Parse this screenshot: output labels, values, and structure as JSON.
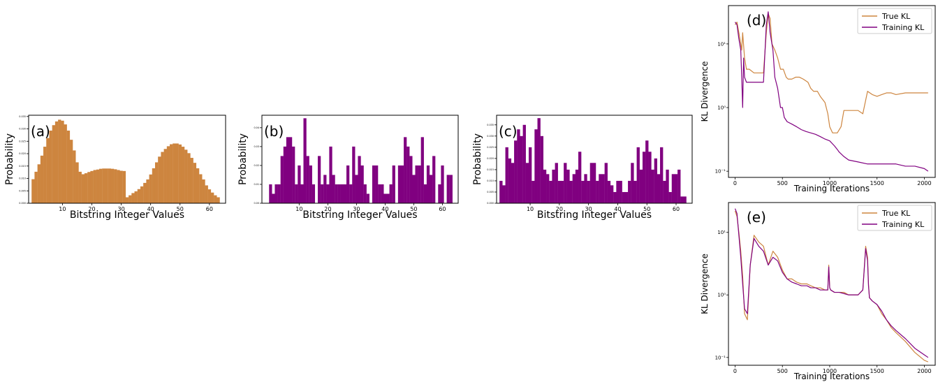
{
  "colors": {
    "orange": "#cd853f",
    "purple": "#800080",
    "axis": "#000000"
  },
  "chart_data": [
    {
      "panel": "(a)",
      "type": "bar",
      "xlabel": "Bitstring Integer Values",
      "ylabel": "Probability",
      "xlim": [
        -1.5,
        65.5
      ],
      "ylim": [
        0.0,
        0.0355
      ],
      "xticks": [
        10,
        20,
        30,
        40,
        50,
        60
      ],
      "yticks": [
        0.0,
        0.005,
        0.01,
        0.015,
        0.02,
        0.025,
        0.03,
        0.035
      ],
      "ytick_labels": [
        "0.000",
        "0.005",
        "0.010",
        "0.015",
        "0.020",
        "0.025",
        "0.030",
        "0.035"
      ],
      "color": "orange",
      "x": [
        0,
        1,
        2,
        3,
        4,
        5,
        6,
        7,
        8,
        9,
        10,
        11,
        12,
        13,
        14,
        15,
        16,
        17,
        18,
        19,
        20,
        21,
        22,
        23,
        24,
        25,
        26,
        27,
        28,
        29,
        30,
        31,
        32,
        33,
        34,
        35,
        36,
        37,
        38,
        39,
        40,
        41,
        42,
        43,
        44,
        45,
        46,
        47,
        48,
        49,
        50,
        51,
        52,
        53,
        54,
        55,
        56,
        57,
        58,
        59,
        60,
        61,
        62,
        63
      ],
      "values": [
        0.0097,
        0.0127,
        0.0157,
        0.0192,
        0.0228,
        0.0263,
        0.0293,
        0.0315,
        0.033,
        0.0337,
        0.0333,
        0.0318,
        0.0293,
        0.0256,
        0.0213,
        0.0165,
        0.0127,
        0.0117,
        0.0121,
        0.0126,
        0.013,
        0.0134,
        0.0136,
        0.0139,
        0.014,
        0.014,
        0.014,
        0.0139,
        0.0137,
        0.0134,
        0.0131,
        0.013,
        0.0024,
        0.0032,
        0.0041,
        0.0048,
        0.0057,
        0.0068,
        0.0082,
        0.0096,
        0.0116,
        0.0141,
        0.0165,
        0.0188,
        0.0207,
        0.0219,
        0.023,
        0.0238,
        0.0241,
        0.0241,
        0.0237,
        0.0228,
        0.0216,
        0.0202,
        0.0183,
        0.0163,
        0.0141,
        0.0117,
        0.0096,
        0.0072,
        0.0056,
        0.0043,
        0.0032,
        0.0024
      ]
    },
    {
      "panel": "(b)",
      "type": "bar",
      "xlabel": "Bitstring Integer Values",
      "ylabel": "Probability",
      "xlim": [
        -3.0,
        65.5
      ],
      "ylim": [
        0.0,
        0.0466
      ],
      "xticks": [
        10,
        20,
        30,
        40,
        50,
        60
      ],
      "yticks": [
        0.0,
        0.01,
        0.02,
        0.03,
        0.04
      ],
      "ytick_labels": [
        "0.00",
        "0.01",
        "0.02",
        "0.03",
        "0.04"
      ],
      "color": "purple",
      "x": [
        0,
        1,
        2,
        3,
        4,
        5,
        6,
        7,
        8,
        9,
        10,
        11,
        12,
        13,
        14,
        15,
        16,
        17,
        18,
        19,
        20,
        21,
        22,
        23,
        24,
        25,
        26,
        27,
        28,
        29,
        30,
        31,
        32,
        33,
        34,
        35,
        36,
        37,
        38,
        39,
        40,
        41,
        42,
        43,
        44,
        45,
        46,
        47,
        48,
        49,
        50,
        51,
        52,
        53,
        54,
        55,
        56,
        57,
        58,
        59,
        60,
        61,
        62,
        63
      ],
      "values": [
        0.01,
        0.005,
        0.01,
        0.01,
        0.025,
        0.03,
        0.035,
        0.035,
        0.03,
        0.01,
        0.02,
        0.01,
        0.045,
        0.025,
        0.02,
        0.01,
        0,
        0.025,
        0.01,
        0.015,
        0.01,
        0.03,
        0.015,
        0.01,
        0.01,
        0.01,
        0.01,
        0.02,
        0.01,
        0.03,
        0.015,
        0.025,
        0.02,
        0.01,
        0.005,
        0,
        0.02,
        0.02,
        0.01,
        0.01,
        0.005,
        0.005,
        0.01,
        0.02,
        0,
        0.02,
        0.02,
        0.035,
        0.03,
        0.025,
        0.015,
        0.02,
        0.02,
        0.035,
        0.01,
        0.02,
        0.015,
        0.025,
        0,
        0.01,
        0.02,
        0,
        0.015,
        0.015
      ]
    },
    {
      "panel": "(c)",
      "type": "bar",
      "xlabel": "Bitstring Integer Values",
      "ylabel": "Probability",
      "xlim": [
        -1.5,
        65.5
      ],
      "ylim": [
        0.0,
        0.0393
      ],
      "xticks": [
        10,
        20,
        30,
        40,
        50,
        60
      ],
      "yticks": [
        0.0,
        0.005,
        0.01,
        0.015,
        0.02,
        0.025,
        0.03,
        0.035
      ],
      "ytick_labels": [
        "0.000",
        "0.005",
        "0.010",
        "0.015",
        "0.020",
        "0.025",
        "0.030",
        "0.035"
      ],
      "color": "purple",
      "x": [
        0,
        1,
        2,
        3,
        4,
        5,
        6,
        7,
        8,
        9,
        10,
        11,
        12,
        13,
        14,
        15,
        16,
        17,
        18,
        19,
        20,
        21,
        22,
        23,
        24,
        25,
        26,
        27,
        28,
        29,
        30,
        31,
        32,
        33,
        34,
        35,
        36,
        37,
        38,
        39,
        40,
        41,
        42,
        43,
        44,
        45,
        46,
        47,
        48,
        49,
        50,
        51,
        52,
        53,
        54,
        55,
        56,
        57,
        58,
        59,
        60,
        61,
        62,
        63
      ],
      "values": [
        0.01,
        0.008,
        0.025,
        0.02,
        0.018,
        0.028,
        0.033,
        0.03,
        0.035,
        0.018,
        0.025,
        0.01,
        0.033,
        0.038,
        0.03,
        0.015,
        0.013,
        0.01,
        0.015,
        0.018,
        0.01,
        0.01,
        0.018,
        0.015,
        0.01,
        0.013,
        0.015,
        0.023,
        0.01,
        0.013,
        0.01,
        0.018,
        0.018,
        0.01,
        0.013,
        0.013,
        0.018,
        0.01,
        0.008,
        0.005,
        0.01,
        0.01,
        0.005,
        0.005,
        0.01,
        0.018,
        0.01,
        0.025,
        0.015,
        0.023,
        0.028,
        0.023,
        0.015,
        0.02,
        0.013,
        0.025,
        0.01,
        0.015,
        0.005,
        0.013,
        0.013,
        0.015,
        0.003,
        0.003
      ]
    },
    {
      "panel": "(d)",
      "type": "line",
      "xlabel": "Training Iterations",
      "ylabel": "KL Divergence",
      "yscale": "log",
      "xlim": [
        -70,
        2115
      ],
      "ylim": [
        0.08,
        40
      ],
      "xticks": [
        0,
        500,
        1000,
        1500,
        2000
      ],
      "yticks": [
        0.1,
        1,
        10
      ],
      "ytick_labels": [
        "10⁻¹",
        "10⁰",
        "10¹"
      ],
      "legend": "top-right",
      "series": [
        {
          "name": "True KL",
          "color": "orange",
          "x": [
            0,
            20,
            40,
            60,
            70,
            80,
            100,
            120,
            150,
            200,
            250,
            300,
            330,
            350,
            370,
            390,
            420,
            450,
            480,
            510,
            540,
            560,
            600,
            640,
            680,
            720,
            770,
            800,
            830,
            870,
            900,
            950,
            980,
            1000,
            1030,
            1060,
            1080,
            1120,
            1150,
            1200,
            1250,
            1300,
            1350,
            1400,
            1450,
            1500,
            1550,
            1600,
            1650,
            1700,
            1800,
            1900,
            2000,
            2040
          ],
          "values": [
            20,
            22,
            15,
            10,
            8,
            15,
            6,
            4,
            4,
            3.5,
            3.5,
            3.5,
            15,
            30,
            25,
            10,
            8,
            6,
            4,
            4,
            3,
            2.8,
            2.8,
            3,
            3,
            2.8,
            2.5,
            2,
            1.8,
            1.8,
            1.5,
            1.2,
            0.8,
            0.5,
            0.4,
            0.4,
            0.4,
            0.5,
            0.9,
            0.9,
            0.9,
            0.9,
            0.8,
            1.8,
            1.6,
            1.5,
            1.6,
            1.7,
            1.7,
            1.6,
            1.7,
            1.7,
            1.7,
            1.7
          ]
        },
        {
          "name": "Training KL",
          "color": "purple",
          "x": [
            0,
            20,
            40,
            60,
            70,
            80,
            90,
            100,
            120,
            150,
            200,
            250,
            300,
            330,
            350,
            370,
            400,
            420,
            450,
            480,
            500,
            520,
            550,
            600,
            650,
            700,
            750,
            800,
            850,
            900,
            950,
            1000,
            1050,
            1080,
            1100,
            1150,
            1200,
            1300,
            1400,
            1500,
            1600,
            1700,
            1800,
            1900,
            2000,
            2040
          ],
          "values": [
            22,
            20,
            12,
            8,
            3,
            1,
            6,
            3,
            2.5,
            2.5,
            2.5,
            2.5,
            2.5,
            20,
            32,
            15,
            8,
            3,
            2,
            1,
            1,
            0.7,
            0.6,
            0.55,
            0.5,
            0.45,
            0.42,
            0.4,
            0.38,
            0.35,
            0.32,
            0.3,
            0.25,
            0.22,
            0.2,
            0.17,
            0.15,
            0.14,
            0.13,
            0.13,
            0.13,
            0.13,
            0.12,
            0.12,
            0.11,
            0.1
          ]
        }
      ]
    },
    {
      "panel": "(e)",
      "type": "line",
      "xlabel": "Training Iterations",
      "ylabel": "KL Divergence",
      "yscale": "log",
      "xlim": [
        -70,
        2115
      ],
      "ylim": [
        0.075,
        30
      ],
      "xticks": [
        0,
        500,
        1000,
        1500,
        2000
      ],
      "yticks": [
        0.1,
        1,
        10
      ],
      "ytick_labels": [
        "10⁻¹",
        "10⁰",
        "10¹"
      ],
      "legend": "top-right",
      "series": [
        {
          "name": "True KL",
          "color": "orange",
          "x": [
            0,
            20,
            40,
            60,
            80,
            100,
            130,
            160,
            200,
            250,
            300,
            350,
            400,
            450,
            500,
            550,
            600,
            650,
            700,
            760,
            800,
            850,
            900,
            950,
            980,
            990,
            1000,
            1010,
            1050,
            1100,
            1150,
            1200,
            1250,
            1300,
            1350,
            1380,
            1400,
            1410,
            1420,
            1450,
            1500,
            1550,
            1600,
            1650,
            1700,
            1800,
            1900,
            2000,
            2040
          ],
          "values": [
            22,
            18,
            10,
            5,
            2,
            0.5,
            0.4,
            3,
            9,
            7,
            6,
            3,
            5,
            4,
            2.5,
            1.8,
            1.8,
            1.6,
            1.5,
            1.5,
            1.4,
            1.3,
            1.3,
            1.2,
            1.2,
            3,
            1.3,
            1.2,
            1.1,
            1.1,
            1.1,
            1,
            1,
            1,
            1.2,
            6,
            4,
            1.5,
            0.9,
            0.8,
            0.7,
            0.5,
            0.4,
            0.3,
            0.25,
            0.18,
            0.12,
            0.09,
            0.085
          ]
        },
        {
          "name": "Training KL",
          "color": "purple",
          "x": [
            0,
            20,
            40,
            60,
            80,
            100,
            130,
            160,
            200,
            250,
            300,
            350,
            400,
            450,
            500,
            550,
            600,
            650,
            700,
            760,
            800,
            850,
            900,
            950,
            980,
            990,
            1000,
            1010,
            1050,
            1100,
            1150,
            1200,
            1250,
            1300,
            1350,
            1380,
            1400,
            1410,
            1420,
            1450,
            1500,
            1550,
            1600,
            1650,
            1700,
            1800,
            1900,
            2000,
            2040
          ],
          "values": [
            24,
            20,
            9,
            4,
            1.5,
            0.6,
            0.5,
            3,
            8,
            6,
            5,
            3,
            4,
            3.5,
            2.3,
            1.8,
            1.6,
            1.5,
            1.4,
            1.4,
            1.3,
            1.3,
            1.2,
            1.2,
            1.2,
            2.8,
            1.3,
            1.2,
            1.1,
            1.1,
            1.05,
            1,
            1,
            1,
            1.2,
            5.5,
            3.5,
            1.4,
            0.9,
            0.8,
            0.7,
            0.55,
            0.4,
            0.32,
            0.27,
            0.2,
            0.14,
            0.11,
            0.1
          ]
        }
      ]
    }
  ]
}
